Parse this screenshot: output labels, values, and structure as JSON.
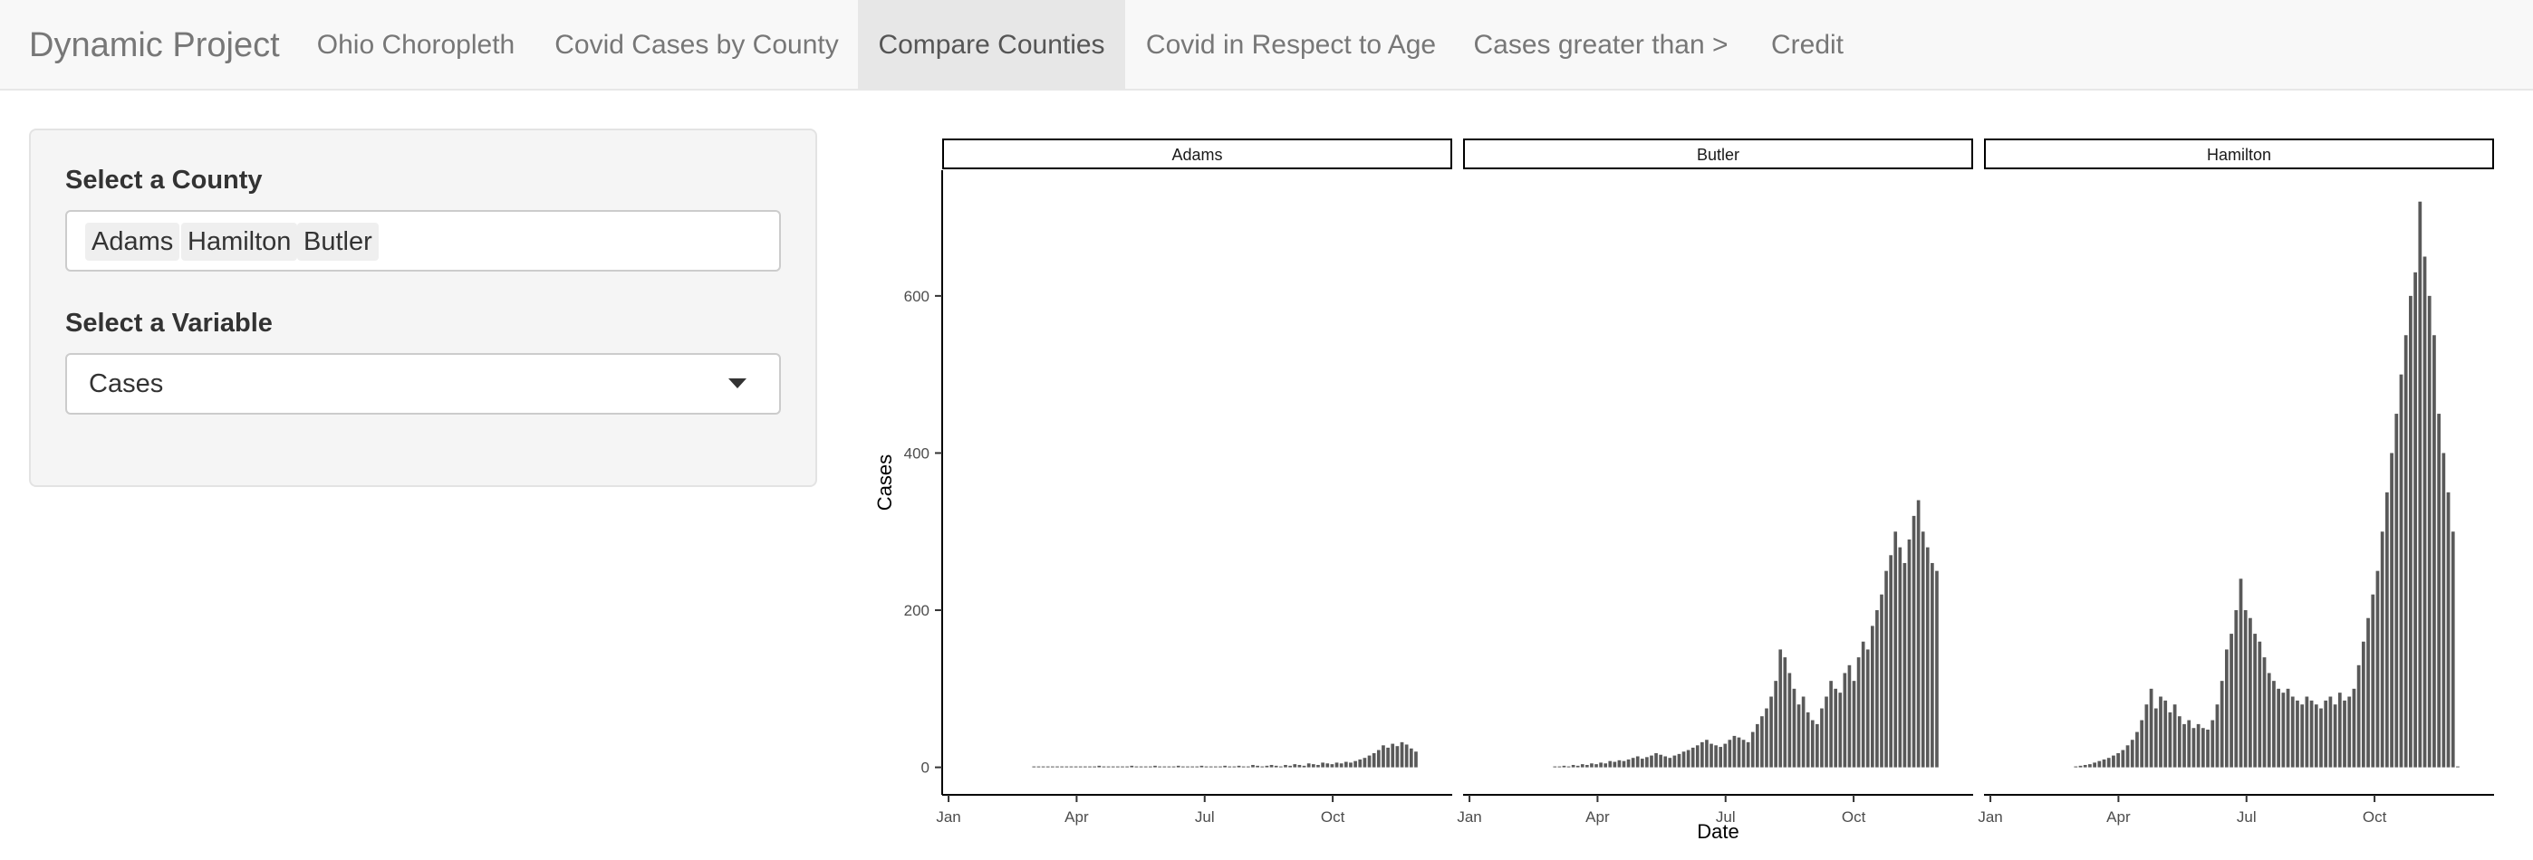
{
  "navbar": {
    "brand": "Dynamic Project",
    "tabs": [
      {
        "label": "Ohio Choropleth",
        "active": false
      },
      {
        "label": "Covid Cases by County",
        "active": false
      },
      {
        "label": "Compare Counties",
        "active": true
      },
      {
        "label": "Covid in Respect to Age",
        "active": false
      },
      {
        "label": "Cases greater than >",
        "active": false
      },
      {
        "label": "Credit",
        "active": false
      }
    ]
  },
  "sidebar": {
    "county_label": "Select a County",
    "selected_counties": [
      "Adams",
      "Hamilton",
      "Butler"
    ],
    "variable_label": "Select a Variable",
    "variable_value": "Cases"
  },
  "colors": {
    "bar": "#595959",
    "navbar_bg": "#f8f8f8",
    "active_tab_bg": "#e7e7e7"
  },
  "chart_data": {
    "type": "bar",
    "facets": [
      "Adams",
      "Butler",
      "Hamilton"
    ],
    "xlabel": "Date",
    "ylabel": "Cases",
    "x_ticks": [
      "Jan",
      "Apr",
      "Jul",
      "Oct"
    ],
    "x_tick_months": [
      0,
      3,
      6,
      9
    ],
    "x_range_months": [
      -0.15,
      11.8
    ],
    "y_ticks": [
      0,
      200,
      400,
      600
    ],
    "ylim": [
      -35,
      760
    ],
    "bar_months_start": 2.0,
    "bar_months_end": 10.95,
    "series": [
      {
        "name": "Adams",
        "values": [
          0,
          0,
          1,
          0,
          1,
          0,
          0,
          1,
          0,
          1,
          1,
          0,
          1,
          0,
          2,
          1,
          0,
          1,
          1,
          0,
          1,
          2,
          1,
          0,
          1,
          1,
          2,
          0,
          1,
          1,
          0,
          2,
          1,
          1,
          0,
          1,
          2,
          1,
          0,
          1,
          1,
          2,
          1,
          0,
          2,
          1,
          1,
          3,
          2,
          1,
          2,
          3,
          2,
          1,
          3,
          2,
          4,
          3,
          2,
          5,
          4,
          3,
          6,
          5,
          4,
          6,
          5,
          7,
          6,
          8,
          10,
          12,
          15,
          18,
          22,
          28,
          25,
          30,
          27,
          32,
          29,
          24,
          20
        ]
      },
      {
        "name": "Butler",
        "values": [
          0,
          1,
          2,
          1,
          3,
          2,
          4,
          3,
          5,
          4,
          6,
          5,
          8,
          7,
          9,
          8,
          10,
          12,
          14,
          11,
          13,
          15,
          18,
          16,
          14,
          12,
          15,
          17,
          20,
          22,
          25,
          28,
          32,
          35,
          30,
          28,
          26,
          30,
          35,
          40,
          38,
          35,
          32,
          45,
          55,
          65,
          75,
          90,
          110,
          150,
          140,
          120,
          100,
          80,
          90,
          70,
          60,
          55,
          75,
          90,
          110,
          100,
          95,
          120,
          130,
          110,
          140,
          160,
          150,
          180,
          200,
          220,
          250,
          270,
          300,
          280,
          260,
          290,
          320,
          340,
          300,
          280,
          260,
          250
        ]
      },
      {
        "name": "Hamilton",
        "values": [
          1,
          2,
          3,
          4,
          6,
          8,
          10,
          12,
          15,
          18,
          22,
          28,
          35,
          45,
          60,
          80,
          100,
          75,
          90,
          85,
          70,
          80,
          65,
          55,
          60,
          50,
          55,
          50,
          48,
          60,
          80,
          110,
          150,
          170,
          200,
          240,
          200,
          190,
          170,
          160,
          140,
          120,
          110,
          100,
          95,
          100,
          90,
          85,
          80,
          90,
          85,
          80,
          75,
          85,
          90,
          80,
          95,
          85,
          90,
          100,
          130,
          160,
          190,
          220,
          250,
          300,
          350,
          400,
          450,
          500,
          550,
          600,
          630,
          720,
          650,
          600,
          550,
          450,
          400,
          350,
          300,
          0
        ]
      }
    ]
  }
}
